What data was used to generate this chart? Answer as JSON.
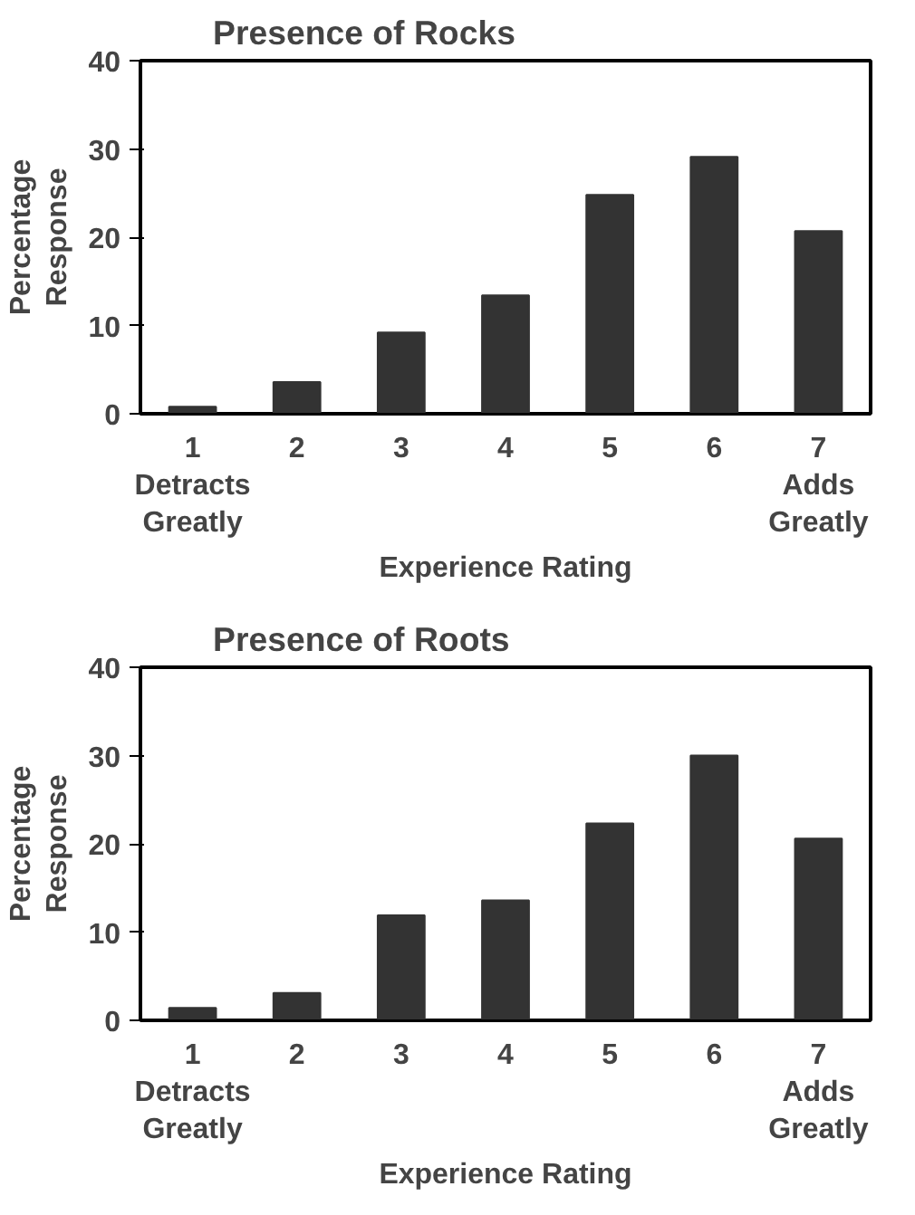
{
  "chart_data": [
    {
      "type": "bar",
      "title": "Presence of Rocks",
      "xlabel": "Experience Rating",
      "ylabel": "Percentage\nResponse",
      "categories": [
        "1\nDetracts\nGreatly",
        "2",
        "3",
        "4",
        "5",
        "6",
        "7\nAdds\nGreatly"
      ],
      "values": [
        0.8,
        3.6,
        9.2,
        13.4,
        24.8,
        29.1,
        20.7
      ],
      "color": "#333333",
      "ylim": [
        0,
        40
      ],
      "yticks": [
        0,
        10,
        20,
        30,
        40
      ],
      "grid": false
    },
    {
      "type": "bar",
      "title": "Presence of Roots",
      "xlabel": "Experience Rating",
      "ylabel": "Percentage\nResponse",
      "categories": [
        "1\nDetracts\nGreatly",
        "2",
        "3",
        "4",
        "5",
        "6",
        "7\nAdds\nGreatly"
      ],
      "values": [
        1.4,
        3.1,
        11.9,
        13.6,
        22.3,
        30.0,
        20.6
      ],
      "color": "#333333",
      "ylim": [
        0,
        40
      ],
      "yticks": [
        0,
        10,
        20,
        30,
        40
      ],
      "grid": false
    }
  ]
}
